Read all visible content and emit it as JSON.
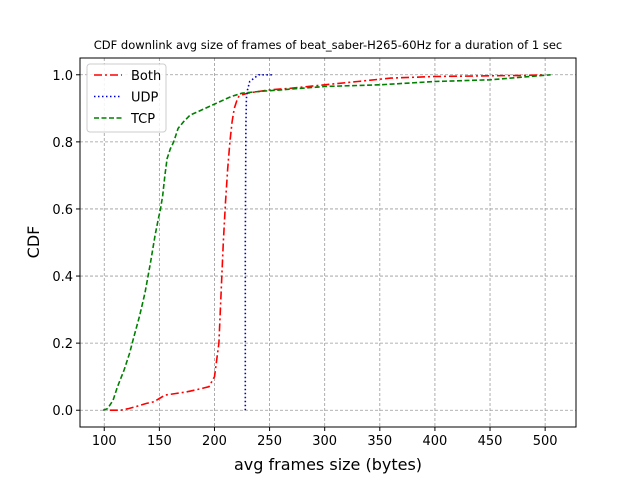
{
  "chart_data": {
    "type": "line",
    "title": "CDF downlink avg size of frames of beat_saber-H265-60Hz for a duration of 1 sec",
    "xlabel": "avg frames size (bytes)",
    "ylabel": "CDF",
    "xlim": [
      78,
      528
    ],
    "ylim": [
      -0.05,
      1.05
    ],
    "xticks": [
      "100",
      "150",
      "200",
      "250",
      "300",
      "350",
      "400",
      "450",
      "500"
    ],
    "yticks": [
      "0.0",
      "0.2",
      "0.4",
      "0.6",
      "0.8",
      "1.0"
    ],
    "grid": true,
    "legend_position": "top-left",
    "series": [
      {
        "name": "Both",
        "color": "#ff0000",
        "dash": "dashdot",
        "x": [
          105,
          115,
          122,
          130,
          138,
          145,
          150,
          155,
          165,
          175,
          185,
          195,
          200,
          204,
          206,
          208,
          210,
          212,
          214,
          216,
          218,
          220,
          222,
          225,
          230,
          240,
          250,
          270,
          300,
          330,
          360,
          400,
          450,
          480,
          500
        ],
        "y": [
          0.0,
          0.0,
          0.005,
          0.012,
          0.02,
          0.025,
          0.035,
          0.045,
          0.05,
          0.055,
          0.062,
          0.07,
          0.1,
          0.2,
          0.35,
          0.5,
          0.62,
          0.72,
          0.8,
          0.86,
          0.9,
          0.92,
          0.935,
          0.94,
          0.945,
          0.95,
          0.955,
          0.96,
          0.97,
          0.98,
          0.99,
          0.995,
          0.997,
          0.998,
          1.0
        ]
      },
      {
        "name": "UDP",
        "color": "#0000cc",
        "dash": "dotted",
        "x": [
          228,
          228,
          228.5,
          229,
          230,
          232,
          236,
          240,
          252
        ],
        "y": [
          0.0,
          0.5,
          0.85,
          0.93,
          0.955,
          0.98,
          0.99,
          1.0,
          1.0
        ]
      },
      {
        "name": "TCP",
        "color": "#008000",
        "dash": "dashed",
        "x": [
          99,
          103,
          108,
          112,
          118,
          123,
          127,
          132,
          137,
          142,
          146,
          149,
          151,
          153,
          155,
          157,
          160,
          163,
          167,
          172,
          178,
          185,
          195,
          205,
          215,
          225,
          240,
          260,
          280,
          300,
          350,
          400,
          450,
          505
        ],
        "y": [
          0.0,
          0.005,
          0.03,
          0.07,
          0.12,
          0.17,
          0.22,
          0.28,
          0.35,
          0.44,
          0.52,
          0.57,
          0.6,
          0.64,
          0.7,
          0.75,
          0.78,
          0.8,
          0.84,
          0.86,
          0.88,
          0.89,
          0.905,
          0.92,
          0.935,
          0.945,
          0.95,
          0.955,
          0.96,
          0.965,
          0.97,
          0.98,
          0.985,
          1.0
        ]
      }
    ]
  }
}
